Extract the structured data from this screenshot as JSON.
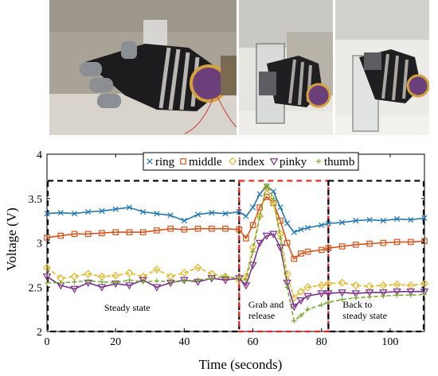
{
  "photos": {
    "panels": [
      {
        "icon": "glove-hand-photo"
      },
      {
        "icon": "glove-grabbing-glass-photo"
      },
      {
        "icon": "glove-releasing-glass-photo"
      }
    ]
  },
  "chart_data": {
    "type": "line",
    "title": "",
    "xlabel": "Time (seconds)",
    "ylabel": "Voltage (V)",
    "xlim": [
      0,
      110
    ],
    "ylim": [
      2,
      4
    ],
    "xticks": [
      "0",
      "20",
      "40",
      "60",
      "80",
      "100"
    ],
    "yticks": [
      "2",
      "2.5",
      "3",
      "3.5",
      "4"
    ],
    "legend_position": "top",
    "series": [
      {
        "name": "ring",
        "color": "#1f77b4",
        "marker": "x",
        "dashed": false,
        "x": [
          0,
          4,
          8,
          12,
          16,
          20,
          24,
          28,
          32,
          36,
          40,
          44,
          48,
          52,
          56,
          58,
          60,
          62,
          64,
          66,
          68,
          70,
          72,
          74,
          76,
          80,
          82,
          86,
          90,
          94,
          98,
          102,
          106,
          110
        ],
        "y": [
          3.33,
          3.34,
          3.33,
          3.35,
          3.36,
          3.38,
          3.4,
          3.35,
          3.33,
          3.31,
          3.25,
          3.32,
          3.34,
          3.33,
          3.35,
          3.3,
          3.4,
          3.55,
          3.64,
          3.58,
          3.4,
          3.22,
          3.12,
          3.15,
          3.17,
          3.2,
          3.22,
          3.23,
          3.25,
          3.26,
          3.25,
          3.27,
          3.26,
          3.28
        ]
      },
      {
        "name": "middle",
        "color": "#d95319",
        "marker": "square",
        "dashed": false,
        "x": [
          0,
          4,
          8,
          12,
          16,
          20,
          24,
          28,
          32,
          36,
          40,
          44,
          48,
          52,
          56,
          58,
          60,
          62,
          64,
          66,
          68,
          70,
          72,
          74,
          76,
          80,
          82,
          86,
          90,
          94,
          98,
          102,
          106,
          110
        ],
        "y": [
          3.06,
          3.08,
          3.1,
          3.1,
          3.11,
          3.12,
          3.12,
          3.12,
          3.14,
          3.16,
          3.15,
          3.16,
          3.16,
          3.16,
          3.15,
          3.05,
          3.2,
          3.4,
          3.52,
          3.45,
          3.25,
          3.0,
          2.82,
          2.88,
          2.9,
          2.92,
          2.94,
          2.96,
          2.98,
          2.99,
          3.0,
          3.01,
          3.01,
          3.02
        ]
      },
      {
        "name": "index",
        "color": "#e6b422",
        "marker": "diamond",
        "dashed": true,
        "x": [
          0,
          4,
          8,
          12,
          16,
          20,
          24,
          28,
          32,
          36,
          40,
          44,
          48,
          52,
          56,
          58,
          60,
          62,
          64,
          66,
          68,
          70,
          72,
          74,
          76,
          80,
          82,
          86,
          90,
          94,
          98,
          102,
          106,
          110
        ],
        "y": [
          2.72,
          2.6,
          2.62,
          2.65,
          2.62,
          2.63,
          2.66,
          2.62,
          2.7,
          2.62,
          2.66,
          2.72,
          2.65,
          2.62,
          2.58,
          2.62,
          2.95,
          3.3,
          3.62,
          3.45,
          3.1,
          2.65,
          2.38,
          2.45,
          2.5,
          2.52,
          2.54,
          2.55,
          2.52,
          2.51,
          2.52,
          2.53,
          2.52,
          2.54
        ]
      },
      {
        "name": "pinky",
        "color": "#7e2f8e",
        "marker": "triangle-down",
        "dashed": false,
        "x": [
          0,
          4,
          8,
          12,
          16,
          20,
          24,
          28,
          32,
          36,
          40,
          44,
          48,
          52,
          56,
          58,
          60,
          62,
          64,
          66,
          68,
          70,
          72,
          74,
          76,
          80,
          82,
          86,
          90,
          94,
          98,
          102,
          106,
          110
        ],
        "y": [
          2.62,
          2.52,
          2.48,
          2.55,
          2.5,
          2.54,
          2.52,
          2.58,
          2.5,
          2.55,
          2.58,
          2.56,
          2.6,
          2.58,
          2.6,
          2.52,
          2.75,
          3.0,
          3.08,
          3.1,
          2.95,
          2.55,
          2.28,
          2.35,
          2.4,
          2.43,
          2.43,
          2.44,
          2.43,
          2.44,
          2.44,
          2.45,
          2.45,
          2.45
        ]
      },
      {
        "name": "thumb",
        "color": "#77ac30",
        "marker": "plus",
        "dashed": true,
        "x": [
          0,
          4,
          8,
          12,
          16,
          20,
          24,
          28,
          32,
          36,
          40,
          44,
          48,
          52,
          56,
          58,
          60,
          62,
          64,
          66,
          68,
          70,
          72,
          74,
          76,
          80,
          82,
          86,
          90,
          94,
          98,
          102,
          106,
          110
        ],
        "y": [
          2.55,
          2.55,
          2.56,
          2.57,
          2.56,
          2.55,
          2.58,
          2.56,
          2.57,
          2.56,
          2.57,
          2.58,
          2.6,
          2.62,
          2.6,
          2.58,
          2.9,
          3.3,
          3.65,
          3.5,
          3.05,
          2.5,
          2.12,
          2.18,
          2.25,
          2.3,
          2.33,
          2.36,
          2.38,
          2.39,
          2.4,
          2.41,
          2.41,
          2.42
        ]
      }
    ],
    "regions": [
      {
        "label": "Steady state",
        "x": [
          0,
          56
        ],
        "color": "#000000"
      },
      {
        "label": "Grab and release",
        "x": [
          56,
          82
        ],
        "color": "#e8211f"
      },
      {
        "label": "Back to steady state",
        "x": [
          82,
          110
        ],
        "color": "#000000"
      }
    ],
    "region_ylim": [
      2,
      3.7
    ]
  }
}
